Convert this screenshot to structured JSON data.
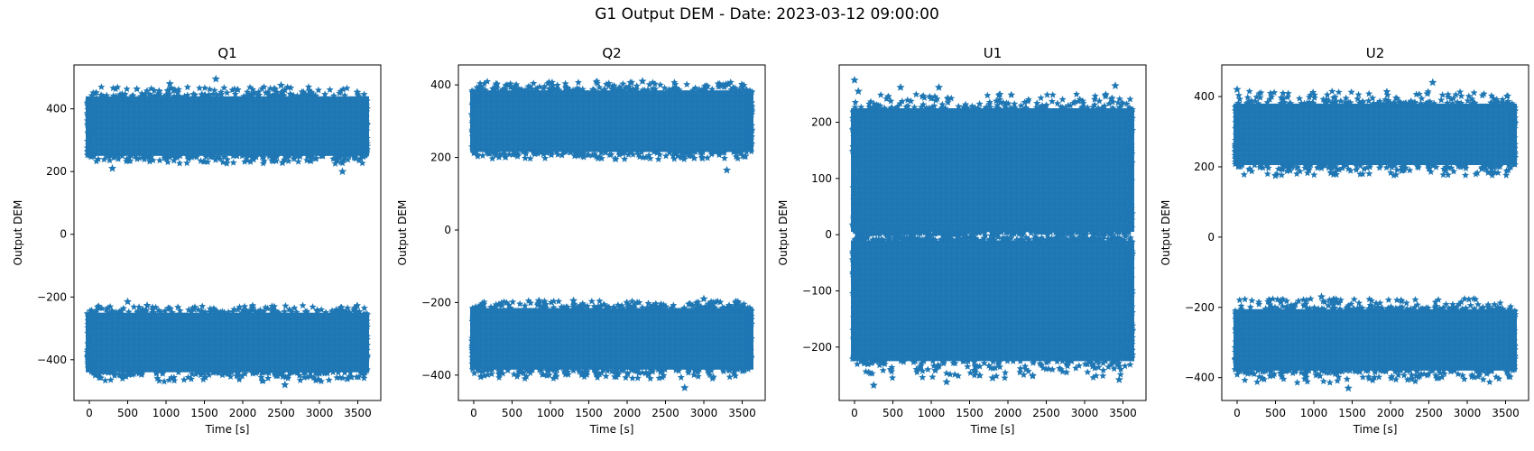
{
  "figure": {
    "suptitle": "G1 Output DEM - Date: 2023-03-12 09:00:00",
    "series_color": "#1f77b4",
    "marker": "star"
  },
  "chart_data": [
    {
      "type": "scatter",
      "title": "Q1",
      "xlabel": "Time [s]",
      "ylabel": "Output DEM",
      "xlim": [
        -200,
        3800
      ],
      "ylim": [
        -530,
        540
      ],
      "xticks": [
        0,
        500,
        1000,
        1500,
        2000,
        2500,
        3000,
        3500
      ],
      "yticks": [
        -400,
        -200,
        0,
        200,
        400
      ],
      "x_range": [
        0,
        3600
      ],
      "bands": [
        {
          "y_center": 345,
          "y_core": [
            250,
            440
          ],
          "y_spread": [
            225,
            470
          ]
        },
        {
          "y_center": -345,
          "y_core": [
            -440,
            -250
          ],
          "y_spread": [
            -470,
            -225
          ]
        }
      ],
      "outliers": [
        [
          1050,
          480
        ],
        [
          1650,
          495
        ],
        [
          2500,
          475
        ],
        [
          3300,
          200
        ],
        [
          300,
          210
        ],
        [
          500,
          -215
        ],
        [
          2550,
          -480
        ]
      ]
    },
    {
      "type": "scatter",
      "title": "Q2",
      "xlabel": "Time [s]",
      "ylabel": "Output DEM",
      "xlim": [
        -200,
        3800
      ],
      "ylim": [
        -470,
        455
      ],
      "xticks": [
        0,
        500,
        1000,
        1500,
        2000,
        2500,
        3000,
        3500
      ],
      "yticks": [
        -400,
        -200,
        0,
        200,
        400
      ],
      "x_range": [
        0,
        3600
      ],
      "bands": [
        {
          "y_center": 300,
          "y_core": [
            215,
            385
          ],
          "y_spread": [
            195,
            410
          ]
        },
        {
          "y_center": -300,
          "y_core": [
            -385,
            -215
          ],
          "y_spread": [
            -410,
            -195
          ]
        }
      ],
      "outliers": [
        [
          3300,
          165
        ],
        [
          2750,
          -435
        ],
        [
          850,
          -195
        ],
        [
          1300,
          -195
        ],
        [
          3000,
          -190
        ],
        [
          2200,
          410
        ]
      ]
    },
    {
      "type": "scatter",
      "title": "U1",
      "xlabel": "Time [s]",
      "ylabel": "Output DEM",
      "xlim": [
        -200,
        3800
      ],
      "ylim": [
        -295,
        302
      ],
      "xticks": [
        0,
        500,
        1000,
        1500,
        2000,
        2500,
        3000,
        3500
      ],
      "yticks": [
        -200,
        -100,
        0,
        100,
        200
      ],
      "x_range": [
        0,
        3600
      ],
      "bands": [
        {
          "y_center": 120,
          "y_core": [
            5,
            225
          ],
          "y_spread": [
            0,
            250
          ]
        },
        {
          "y_center": -120,
          "y_core": [
            -225,
            -10
          ],
          "y_spread": [
            -255,
            -5
          ]
        }
      ],
      "outliers": [
        [
          0,
          275
        ],
        [
          50,
          255
        ],
        [
          600,
          262
        ],
        [
          1100,
          262
        ],
        [
          3400,
          265
        ],
        [
          250,
          -268
        ],
        [
          1200,
          -262
        ],
        [
          1800,
          -255
        ],
        [
          3450,
          -258
        ]
      ]
    },
    {
      "type": "scatter",
      "title": "U2",
      "xlabel": "Time [s]",
      "ylabel": "Output DEM",
      "xlim": [
        -200,
        3800
      ],
      "ylim": [
        -465,
        490
      ],
      "xticks": [
        0,
        500,
        1000,
        1500,
        2000,
        2500,
        3000,
        3500
      ],
      "yticks": [
        -400,
        -200,
        0,
        200,
        400
      ],
      "x_range": [
        0,
        3600
      ],
      "bands": [
        {
          "y_center": 290,
          "y_core": [
            205,
            380
          ],
          "y_spread": [
            175,
            415
          ]
        },
        {
          "y_center": -290,
          "y_core": [
            -380,
            -205
          ],
          "y_spread": [
            -415,
            -175
          ]
        }
      ],
      "outliers": [
        [
          2550,
          440
        ],
        [
          0,
          420
        ],
        [
          500,
          175
        ],
        [
          1450,
          -430
        ],
        [
          1100,
          -170
        ],
        [
          1250,
          -180
        ]
      ]
    }
  ]
}
